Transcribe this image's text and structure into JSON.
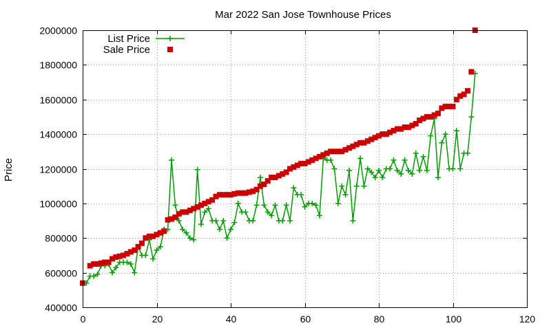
{
  "chart_data": {
    "type": "line",
    "title": "Mar 2022 San Jose Townhouse Prices",
    "xlabel": "",
    "ylabel": "Price",
    "xlim": [
      0,
      120
    ],
    "ylim": [
      400000,
      2000000
    ],
    "xticks": [
      0,
      20,
      40,
      60,
      80,
      100,
      120
    ],
    "yticks": [
      400000,
      600000,
      800000,
      1000000,
      1200000,
      1400000,
      1600000,
      1800000,
      2000000
    ],
    "grid": true,
    "legend_position": "top-left",
    "series": [
      {
        "name": "List Price",
        "style": "line-plus",
        "color": "#009900",
        "x": [
          1,
          2,
          3,
          4,
          5,
          6,
          7,
          8,
          9,
          10,
          11,
          12,
          13,
          14,
          15,
          16,
          17,
          18,
          19,
          20,
          21,
          22,
          23,
          24,
          25,
          26,
          27,
          28,
          29,
          30,
          31,
          32,
          33,
          34,
          35,
          36,
          37,
          38,
          39,
          40,
          41,
          42,
          43,
          44,
          45,
          46,
          47,
          48,
          49,
          50,
          51,
          52,
          53,
          54,
          55,
          56,
          57,
          58,
          59,
          60,
          61,
          62,
          63,
          64,
          65,
          66,
          67,
          68,
          69,
          70,
          71,
          72,
          73,
          74,
          75,
          76,
          77,
          78,
          79,
          80,
          81,
          82,
          83,
          84,
          85,
          86,
          87,
          88,
          89,
          90,
          91,
          92,
          93,
          94,
          95,
          96,
          97,
          98,
          99,
          100,
          101,
          102,
          103,
          104,
          105,
          106
        ],
        "values": [
          540000,
          580000,
          580000,
          590000,
          640000,
          640000,
          650000,
          600000,
          630000,
          660000,
          660000,
          660000,
          650000,
          600000,
          750000,
          700000,
          700000,
          790000,
          680000,
          730000,
          750000,
          850000,
          850000,
          1250000,
          990000,
          900000,
          850000,
          830000,
          800000,
          790000,
          1195000,
          880000,
          950000,
          970000,
          900000,
          900000,
          850000,
          900000,
          800000,
          850000,
          890000,
          1000000,
          950000,
          950000,
          900000,
          900000,
          990000,
          1150000,
          990000,
          950000,
          930000,
          990000,
          900000,
          900000,
          990000,
          900000,
          1090000,
          1050000,
          1050000,
          980000,
          1000000,
          1000000,
          990000,
          930000,
          1260000,
          1250000,
          1250000,
          1200000,
          1000000,
          1100000,
          1050000,
          1190000,
          900000,
          1100000,
          1260000,
          1100000,
          1200000,
          1180000,
          1150000,
          1190000,
          1150000,
          1200000,
          1200000,
          1250000,
          1190000,
          1170000,
          1250000,
          1190000,
          1170000,
          1290000,
          1190000,
          1270000,
          1190000,
          1390000,
          1490000,
          1150000,
          1350000,
          1400000,
          1200000,
          1200000,
          1420000,
          1200000,
          1290000,
          1290000,
          1500000,
          1750000
        ]
      },
      {
        "name": "Sale Price",
        "style": "square",
        "color": "#cc0000",
        "x": [
          0,
          2,
          3,
          4,
          5,
          6,
          7,
          8,
          9,
          10,
          11,
          12,
          13,
          14,
          15,
          16,
          17,
          18,
          19,
          20,
          21,
          22,
          23,
          24,
          25,
          26,
          27,
          28,
          29,
          30,
          31,
          32,
          33,
          34,
          35,
          36,
          37,
          38,
          39,
          40,
          41,
          42,
          43,
          44,
          45,
          46,
          47,
          48,
          49,
          50,
          51,
          52,
          53,
          54,
          55,
          56,
          57,
          58,
          59,
          60,
          61,
          62,
          63,
          64,
          65,
          66,
          67,
          68,
          69,
          70,
          71,
          72,
          73,
          74,
          75,
          76,
          77,
          78,
          79,
          80,
          81,
          82,
          83,
          84,
          85,
          86,
          87,
          88,
          89,
          90,
          91,
          92,
          93,
          94,
          95,
          96,
          97,
          98,
          99,
          100,
          101,
          102,
          103,
          104,
          105,
          106
        ],
        "values": [
          540000,
          640000,
          650000,
          650000,
          655000,
          660000,
          660000,
          680000,
          690000,
          695000,
          700000,
          710000,
          720000,
          730000,
          750000,
          770000,
          800000,
          810000,
          810000,
          820000,
          830000,
          840000,
          905000,
          910000,
          920000,
          940000,
          950000,
          950000,
          960000,
          970000,
          980000,
          990000,
          1000000,
          1010000,
          1020000,
          1040000,
          1050000,
          1050000,
          1050000,
          1050000,
          1055000,
          1060000,
          1060000,
          1060000,
          1065000,
          1070000,
          1080000,
          1100000,
          1110000,
          1130000,
          1150000,
          1150000,
          1160000,
          1170000,
          1180000,
          1200000,
          1210000,
          1220000,
          1230000,
          1230000,
          1240000,
          1250000,
          1260000,
          1270000,
          1280000,
          1290000,
          1300000,
          1300000,
          1300000,
          1300000,
          1310000,
          1320000,
          1330000,
          1340000,
          1350000,
          1350000,
          1360000,
          1370000,
          1380000,
          1390000,
          1400000,
          1400000,
          1410000,
          1420000,
          1430000,
          1430000,
          1440000,
          1440000,
          1450000,
          1460000,
          1480000,
          1490000,
          1500000,
          1500000,
          1510000,
          1520000,
          1550000,
          1560000,
          1560000,
          1560000,
          1600000,
          1620000,
          1630000,
          1650000,
          1760000,
          2000000
        ]
      }
    ]
  }
}
